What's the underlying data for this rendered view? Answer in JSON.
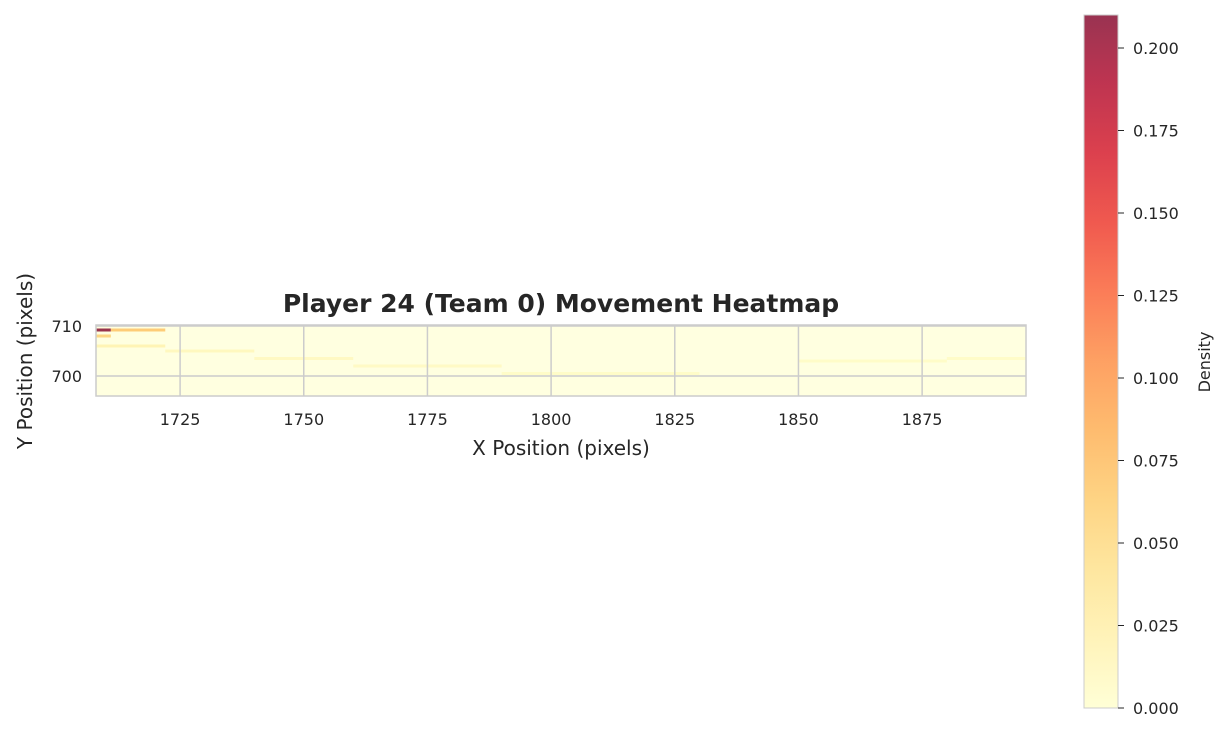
{
  "chart_data": {
    "type": "heatmap",
    "title": "Player 24 (Team 0) Movement Heatmap",
    "xlabel": "X Position (pixels)",
    "ylabel": "Y Position (pixels)",
    "xlim": [
      1708,
      1896
    ],
    "ylim": [
      696,
      710.2
    ],
    "x_ticks": [
      1725,
      1750,
      1775,
      1800,
      1825,
      1850,
      1875
    ],
    "y_ticks": [
      700,
      710
    ],
    "grid": true,
    "colormap": "YlOrRd",
    "colors": [
      "#ffffcc",
      "#fff0a8",
      "#fee087",
      "#fec965",
      "#feab4b",
      "#fd893c",
      "#fa5c2e",
      "#ec3023",
      "#d31121",
      "#af0225",
      "#800026"
    ],
    "alpha": 0.8,
    "colorbar": {
      "label": "Density",
      "range": [
        0,
        0.21
      ],
      "ticks": [
        "0.000",
        "0.025",
        "0.050",
        "0.075",
        "0.100",
        "0.125",
        "0.150",
        "0.175",
        "0.200"
      ]
    },
    "hotspots": [
      {
        "x0": 1708,
        "x1": 1711,
        "y": 709.2,
        "value": 0.21
      },
      {
        "x0": 1711,
        "x1": 1722,
        "y": 709.2,
        "value": 0.07
      },
      {
        "x0": 1708,
        "x1": 1711,
        "y": 708.0,
        "value": 0.06
      },
      {
        "x0": 1708,
        "x1": 1722,
        "y": 706.0,
        "value": 0.02
      },
      {
        "x0": 1722,
        "x1": 1740,
        "y": 705.0,
        "value": 0.012
      },
      {
        "x0": 1740,
        "x1": 1760,
        "y": 703.5,
        "value": 0.01
      },
      {
        "x0": 1760,
        "x1": 1790,
        "y": 702.0,
        "value": 0.008
      },
      {
        "x0": 1790,
        "x1": 1830,
        "y": 700.5,
        "value": 0.006
      },
      {
        "x0": 1850,
        "x1": 1880,
        "y": 703.0,
        "value": 0.006
      },
      {
        "x0": 1880,
        "x1": 1896,
        "y": 703.5,
        "value": 0.006
      }
    ]
  }
}
